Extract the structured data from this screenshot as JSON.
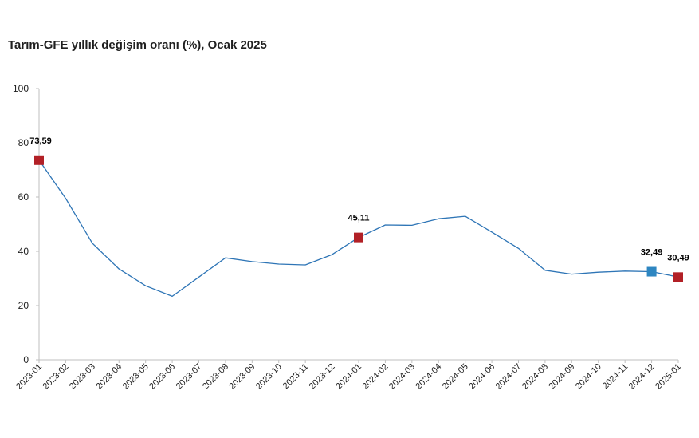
{
  "chart_data": {
    "type": "line",
    "title": "Tarım-GFE yıllık değişim oranı (%), Ocak 2025",
    "xlabel": "",
    "ylabel": "",
    "ylim": [
      0,
      100
    ],
    "yticks": [
      0,
      20,
      40,
      60,
      80,
      100
    ],
    "categories": [
      "2023-01",
      "2023-02",
      "2023-03",
      "2023-04",
      "2023-05",
      "2023-06",
      "2023-07",
      "2023-08",
      "2023-09",
      "2023-10",
      "2023-11",
      "2023-12",
      "2024-01",
      "2024-02",
      "2024-03",
      "2024-04",
      "2024-05",
      "2024-06",
      "2024-07",
      "2024-08",
      "2024-09",
      "2024-10",
      "2024-11",
      "2024-12",
      "2025-01"
    ],
    "series": [
      {
        "values": [
          73.59,
          59.5,
          43.0,
          33.5,
          27.3,
          23.4,
          30.5,
          37.6,
          36.2,
          35.3,
          35.0,
          38.8,
          45.11,
          49.7,
          49.6,
          52.0,
          52.9,
          47.1,
          41.1,
          33.0,
          31.6,
          32.3,
          32.7,
          32.49,
          30.49
        ],
        "color": "#2e75b6"
      }
    ],
    "markers": [
      {
        "index": 0,
        "label": "73,59",
        "color": "#b22026"
      },
      {
        "index": 12,
        "label": "45,11",
        "color": "#b22026"
      },
      {
        "index": 23,
        "label": "32,49",
        "color": "#2e86c1"
      },
      {
        "index": 24,
        "label": "30,49",
        "color": "#b22026"
      }
    ],
    "grid": false,
    "legend": "none"
  }
}
